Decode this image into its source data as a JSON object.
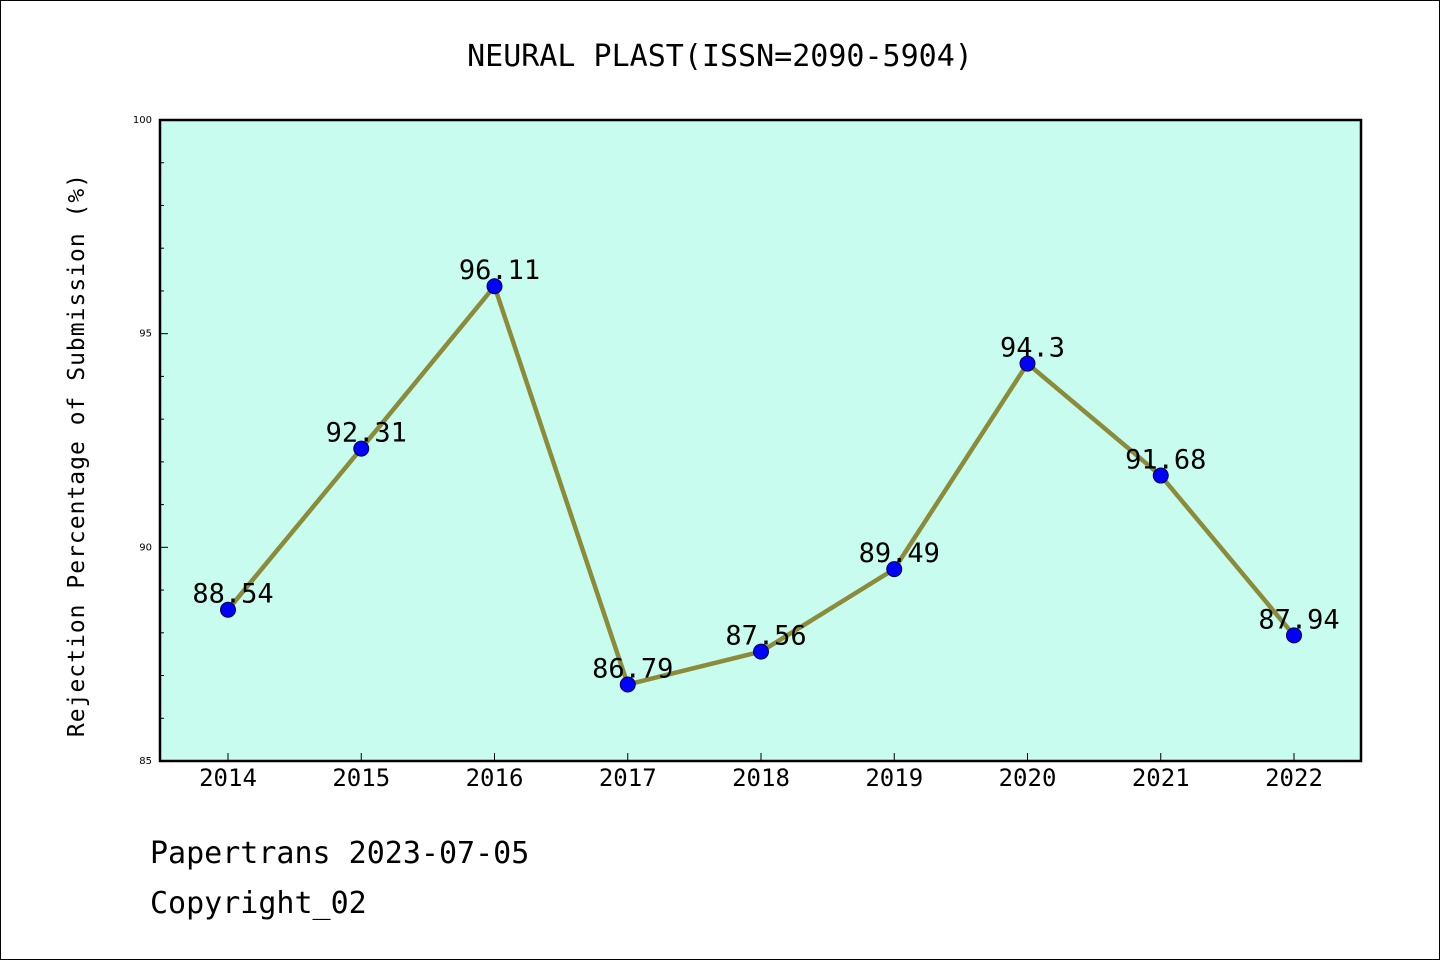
{
  "chart_data": {
    "type": "line",
    "title": "NEURAL PLAST(ISSN=2090-5904)",
    "xlabel": "",
    "ylabel": "Rejection Percentage of Submission (%)",
    "categories": [
      "2014",
      "2015",
      "2016",
      "2017",
      "2018",
      "2019",
      "2020",
      "2021",
      "2022"
    ],
    "series": [
      {
        "values": [
          88.54,
          92.31,
          96.11,
          86.79,
          87.56,
          89.49,
          94.3,
          91.68,
          87.94
        ],
        "data_labels": [
          "88.54",
          "92.31",
          "96.11",
          "86.79",
          "87.56",
          "89.49",
          "94.3",
          "91.68",
          "87.94"
        ]
      }
    ],
    "ylim": [
      85,
      100
    ],
    "yticks": [
      "85",
      "90",
      "95",
      "100"
    ],
    "grid": false,
    "legend": "none",
    "colors": {
      "plot_background": "#c8fcee",
      "line": "#8b8b3a",
      "marker": "#0000ff"
    }
  },
  "footer": {
    "source": "Papertrans 2023-07-05",
    "copyright": "Copyright_02"
  }
}
